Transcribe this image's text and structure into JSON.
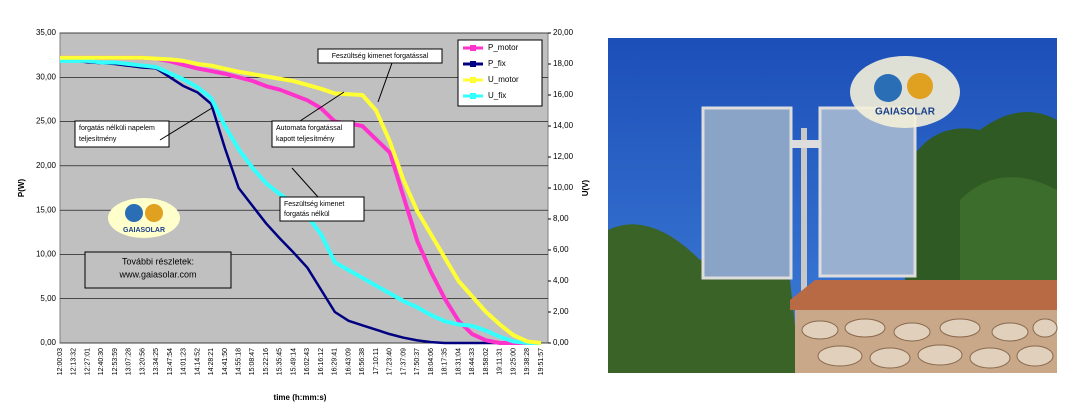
{
  "chart_data": {
    "type": "line",
    "x_label": "time (h:mm:s)",
    "y_label": "P(W)",
    "y2_label": "U(V)",
    "categories": [
      "12:00:03",
      "12:13:32",
      "12:27:01",
      "12:40:30",
      "12:53:59",
      "13:07:28",
      "13:20:56",
      "13:34:25",
      "13:47:54",
      "14:01:23",
      "14:14:52",
      "14:28:21",
      "14:41:50",
      "14:55:18",
      "15:08:47",
      "15:22:16",
      "15:35:45",
      "15:49:14",
      "16:02:43",
      "16:16:12",
      "16:29:41",
      "16:43:09",
      "16:56:38",
      "17:10:11",
      "17:23:40",
      "17:37:09",
      "17:50:37",
      "18:04:06",
      "18:17:35",
      "18:31:04",
      "18:44:33",
      "18:58:02",
      "19:11:31",
      "19:25:00",
      "19:38:28",
      "19:51:57"
    ],
    "series": [
      {
        "name": "P_motor",
        "color": "#ff33cc",
        "values": [
          32.2,
          32.2,
          32.2,
          32.2,
          32.2,
          32.2,
          32.2,
          32.1,
          31.8,
          31.4,
          31,
          30.7,
          30.4,
          30,
          29.6,
          29,
          28.6,
          28,
          27.4,
          26.5,
          25,
          24.8,
          24.5,
          23,
          21.5,
          16.5,
          11.5,
          8,
          5,
          2.5,
          1,
          0.3,
          0,
          0,
          0,
          0
        ]
      },
      {
        "name": "P_fix",
        "color": "#000080",
        "values": [
          32,
          31.9,
          31.7,
          31.6,
          31.5,
          31.3,
          31.1,
          31,
          30,
          29,
          28.3,
          27,
          22,
          17.5,
          15.5,
          13.5,
          11.8,
          10.2,
          8.5,
          6,
          3.5,
          2.5,
          2,
          1.5,
          1,
          0.6,
          0.3,
          0.1,
          0,
          0,
          0,
          0,
          0,
          0,
          0,
          0
        ]
      },
      {
        "name": "U_motor",
        "color": "#ffff33",
        "axis": "y2",
        "values": [
          18.4,
          18.4,
          18.4,
          18.4,
          18.4,
          18.4,
          18.4,
          18.35,
          18.3,
          18.2,
          18,
          17.9,
          17.7,
          17.5,
          17.35,
          17.2,
          17.05,
          16.9,
          16.65,
          16.4,
          16.1,
          16.05,
          16,
          15,
          13,
          10.5,
          8.5,
          7,
          5.5,
          4,
          3,
          2,
          1.2,
          0.5,
          0.1,
          0
        ]
      },
      {
        "name": "U_fix",
        "color": "#33ffff",
        "axis": "y2",
        "values": [
          18.2,
          18.2,
          18.2,
          18.1,
          18.1,
          18,
          17.9,
          17.8,
          17.4,
          17,
          16.5,
          15.8,
          14,
          12.5,
          11.3,
          10.3,
          9.6,
          9,
          8.2,
          7,
          5.2,
          4.7,
          4.2,
          3.7,
          3.2,
          2.7,
          2.3,
          1.8,
          1.4,
          1.2,
          1.1,
          0.8,
          0.4,
          0.1,
          0,
          0
        ]
      }
    ],
    "ylim": [
      0,
      35
    ],
    "yticks": [
      {
        "value": 0,
        "label": "0,00"
      },
      {
        "value": 5,
        "label": "5,00"
      },
      {
        "value": 10,
        "label": "10,00"
      },
      {
        "value": 15,
        "label": "15,00"
      },
      {
        "value": 20,
        "label": "20,00"
      },
      {
        "value": 25,
        "label": "25,00"
      },
      {
        "value": 30,
        "label": "30,00"
      },
      {
        "value": 35,
        "label": "35,00"
      }
    ],
    "y2lim": [
      0,
      20
    ],
    "y2ticks": [
      {
        "value": 0,
        "label": "0,00"
      },
      {
        "value": 2,
        "label": "2,00"
      },
      {
        "value": 4,
        "label": "4,00"
      },
      {
        "value": 6,
        "label": "6,00"
      },
      {
        "value": 8,
        "label": "8,00"
      },
      {
        "value": 10,
        "label": "10,00"
      },
      {
        "value": 12,
        "label": "12,00"
      },
      {
        "value": 14,
        "label": "14,00"
      },
      {
        "value": 16,
        "label": "16,00"
      },
      {
        "value": 18,
        "label": "18,00"
      },
      {
        "value": 20,
        "label": "20,00"
      }
    ],
    "grid": true,
    "legend": "top-right",
    "annotations": {
      "u_motor": "Feszültség kimenet forgatással",
      "p_fix": [
        "forgatás nélküli napelem",
        "teljesítmény"
      ],
      "p_motor": [
        "Automata forgatással",
        "kapott teljesítmény"
      ],
      "u_fix": [
        "Feszültség kimenet",
        "forgatás nélkül"
      ],
      "more": [
        "További részletek:",
        "www.gaiasolar.com"
      ],
      "logo": "GAIASOLAR"
    }
  },
  "photo": {
    "logo": "GAIASOLAR"
  }
}
